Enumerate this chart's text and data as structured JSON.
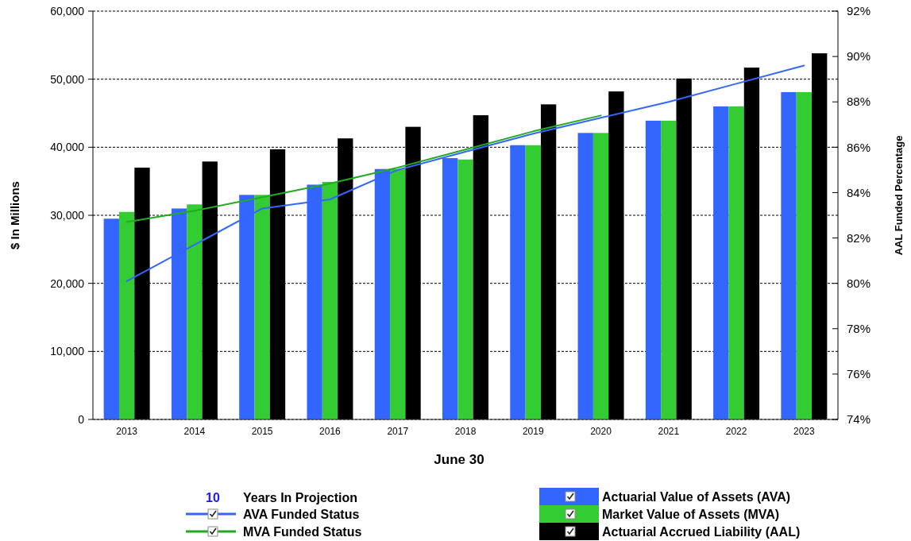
{
  "chart_data": {
    "type": "bar",
    "categories": [
      "2013",
      "2014",
      "2015",
      "2016",
      "2017",
      "2018",
      "2019",
      "2020",
      "2021",
      "2022",
      "2023"
    ],
    "xlabel": "June 30",
    "ylabel": "$ In Millions",
    "y2label": "AAL Funded Percentage",
    "ylim": [
      0,
      60000
    ],
    "yticks": [
      0,
      {
        "value": 10000,
        "label": "10,000"
      },
      {
        "value": 20000,
        "label": "20,000"
      },
      {
        "value": 30000,
        "label": "30,000"
      },
      {
        "value": 40000,
        "label": "40,000"
      },
      {
        "value": 50000,
        "label": "50,000"
      },
      {
        "value": 60000,
        "label": "60,000"
      }
    ],
    "y2lim": [
      74,
      92
    ],
    "y2ticks": [
      {
        "value": 74,
        "label": "74%"
      },
      {
        "value": 76,
        "label": "76%"
      },
      {
        "value": 78,
        "label": "78%"
      },
      {
        "value": 80,
        "label": "80%"
      },
      {
        "value": 82,
        "label": "82%"
      },
      {
        "value": 84,
        "label": "84%"
      },
      {
        "value": 86,
        "label": "86%"
      },
      {
        "value": 88,
        "label": "88%"
      },
      {
        "value": 90,
        "label": "90%"
      },
      {
        "value": 92,
        "label": "92%"
      }
    ],
    "grid": "y",
    "legend": "bottom",
    "annotations": [
      "10",
      "Years In Projection"
    ],
    "series": [
      {
        "name": "Actuarial Value of Assets (AVA)",
        "color": "#3366ff",
        "values": [
          29500,
          31000,
          33000,
          34500,
          36800,
          38400,
          40300,
          42100,
          43900,
          46000,
          48100
        ]
      },
      {
        "name": "Market Value of Assets (MVA)",
        "color": "#33cc33",
        "values": [
          30500,
          31600,
          33000,
          34900,
          36800,
          38200,
          40300,
          42100,
          43900,
          46000,
          48100
        ]
      },
      {
        "name": "Actuarial Accrued Liability (AAL)",
        "color": "#000000",
        "values": [
          37000,
          37900,
          39700,
          41300,
          43000,
          44700,
          46300,
          48200,
          50100,
          51700,
          53800
        ]
      },
      {
        "name": "AVA Funded Status",
        "type": "line",
        "axis": "y2",
        "color": "#3366ff",
        "values": [
          80.1,
          81.7,
          83.3,
          83.7,
          85.0,
          85.8,
          86.6,
          87.3,
          88.0,
          88.8,
          89.6
        ]
      },
      {
        "name": "MVA Funded Status",
        "type": "line",
        "axis": "y2",
        "color": "#22aa22",
        "values": [
          82.7,
          83.2,
          83.8,
          84.4,
          85.1,
          85.9,
          86.7,
          87.4,
          null,
          null,
          null
        ]
      }
    ]
  }
}
